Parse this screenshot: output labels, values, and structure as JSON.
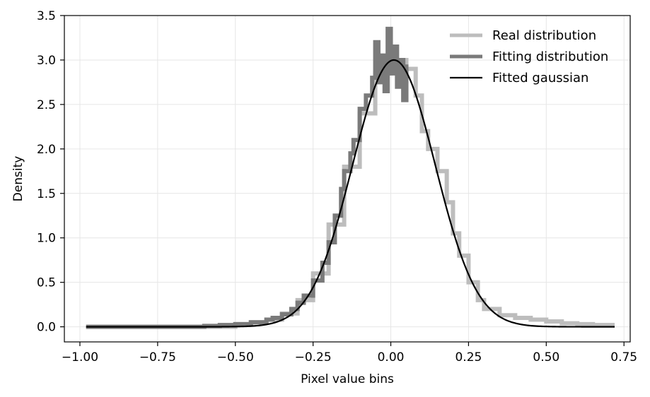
{
  "chart_data": {
    "type": "line",
    "xlabel": "Pixel value bins",
    "ylabel": "Density",
    "xlim": [
      -1.05,
      0.77
    ],
    "ylim": [
      -0.17,
      3.5
    ],
    "grid": true,
    "legend_position": "top-right",
    "xticks": [
      -1.0,
      -0.75,
      -0.5,
      -0.25,
      0.0,
      0.25,
      0.5,
      0.75
    ],
    "xtick_labels": [
      "−1.00",
      "−0.75",
      "−0.50",
      "−0.25",
      "0.00",
      "0.25",
      "0.50",
      "0.75"
    ],
    "yticks": [
      0.0,
      0.5,
      1.0,
      1.5,
      2.0,
      2.5,
      3.0,
      3.5
    ],
    "ytick_labels": [
      "0.0",
      "0.5",
      "1.0",
      "1.5",
      "2.0",
      "2.5",
      "3.0",
      "3.5"
    ],
    "series": [
      {
        "name": "Real distribution",
        "color": "#bdbdbd",
        "style": "thick-step",
        "x": [
          -0.98,
          -0.5,
          -0.45,
          -0.4,
          -0.35,
          -0.3,
          -0.25,
          -0.2,
          -0.15,
          -0.1,
          -0.05,
          0.0,
          0.05,
          0.08,
          0.1,
          0.12,
          0.15,
          0.18,
          0.2,
          0.22,
          0.25,
          0.28,
          0.3,
          0.35,
          0.4,
          0.45,
          0.5,
          0.55,
          0.6,
          0.65,
          0.72
        ],
        "y": [
          0.0,
          0.03,
          0.05,
          0.08,
          0.15,
          0.3,
          0.6,
          1.15,
          1.8,
          2.4,
          2.85,
          3.0,
          2.9,
          2.6,
          2.2,
          2.0,
          1.75,
          1.4,
          1.05,
          0.8,
          0.5,
          0.3,
          0.2,
          0.13,
          0.1,
          0.08,
          0.06,
          0.04,
          0.03,
          0.02,
          0.02
        ]
      },
      {
        "name": "Fitting distribution",
        "color": "#7a7a7a",
        "style": "thick-step",
        "x": [
          -0.98,
          -0.6,
          -0.55,
          -0.5,
          -0.45,
          -0.4,
          -0.38,
          -0.35,
          -0.32,
          -0.3,
          -0.28,
          -0.25,
          -0.22,
          -0.2,
          -0.18,
          -0.16,
          -0.15,
          -0.13,
          -0.12,
          -0.1,
          -0.08,
          -0.06,
          -0.05,
          -0.04,
          -0.03,
          -0.02,
          -0.01,
          0.0,
          0.01,
          0.02,
          0.03,
          0.04,
          0.05
        ],
        "y": [
          0.0,
          0.01,
          0.02,
          0.03,
          0.05,
          0.08,
          0.1,
          0.14,
          0.2,
          0.27,
          0.35,
          0.52,
          0.72,
          0.95,
          1.25,
          1.55,
          1.75,
          1.95,
          2.1,
          2.45,
          2.6,
          2.8,
          3.2,
          2.75,
          3.05,
          2.65,
          3.35,
          2.85,
          3.15,
          2.7,
          3.0,
          2.55,
          2.95
        ]
      },
      {
        "name": "Fitted gaussian",
        "color": "#000000",
        "style": "line",
        "mean": 0.01,
        "sigma": 0.133,
        "amplitude": 3.0,
        "x_range": [
          -0.98,
          0.72
        ]
      }
    ]
  }
}
